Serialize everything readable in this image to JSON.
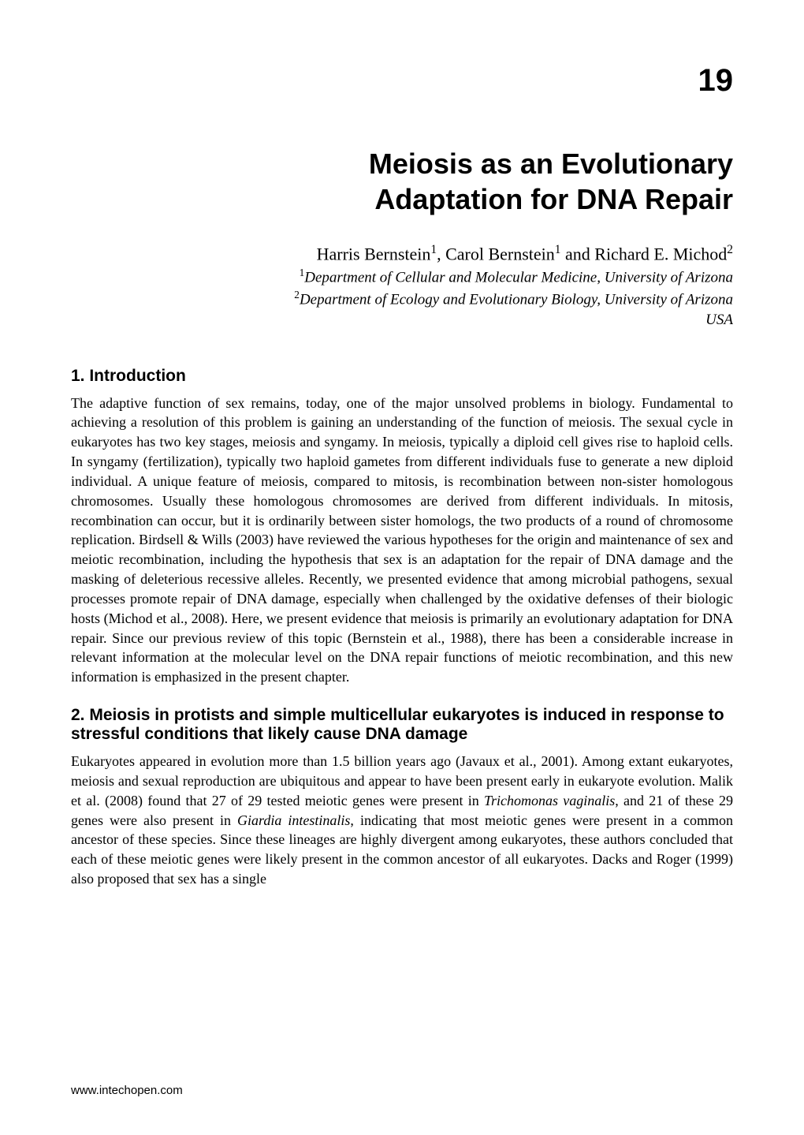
{
  "chapter_number": "19",
  "chapter_title_line1": "Meiosis as an Evolutionary",
  "chapter_title_line2": "Adaptation for DNA Repair",
  "authors_html": "Harris Bernstein<sup>1</sup>, Carol Bernstein<sup>1</sup> and Richard E. Michod<sup>2</sup>",
  "affil1_html": "<sup>1</sup>Department of Cellular and Molecular Medicine, University of Arizona",
  "affil2_html": "<sup>2</sup>Department of Ecology and Evolutionary Biology, University of Arizona",
  "country": "USA",
  "section1_heading": "1. Introduction",
  "section1_body": "The adaptive function of sex remains, today, one of the major unsolved problems in biology. Fundamental to achieving a resolution of this problem is gaining an understanding of the function of meiosis. The sexual cycle in eukaryotes has two key stages, meiosis and syngamy. In meiosis, typically a diploid cell gives rise to haploid cells. In syngamy (fertilization), typically two haploid gametes from different individuals fuse to generate a new diploid individual. A unique feature of meiosis, compared to mitosis, is recombination between non-sister homologous chromosomes. Usually these homologous chromosomes are derived from different individuals. In mitosis, recombination can occur, but it is ordinarily between sister homologs, the two products of a round of chromosome replication. Birdsell & Wills (2003) have reviewed the various hypotheses for the origin and maintenance of sex and meiotic recombination, including the hypothesis that sex is an adaptation for the repair of DNA damage and the masking of deleterious recessive alleles. Recently, we presented evidence that among microbial pathogens, sexual processes promote repair of DNA damage, especially when challenged by the oxidative defenses of their biologic hosts (Michod et al., 2008). Here, we present evidence that meiosis is primarily an evolutionary adaptation for DNA repair. Since our previous review of this topic (Bernstein et al., 1988), there has been a considerable increase in relevant information at the molecular level on the DNA repair functions of meiotic recombination, and this new information is emphasized in the present chapter.",
  "section2_heading": "2. Meiosis in protists and simple multicellular eukaryotes is induced in response to stressful conditions that likely cause DNA damage",
  "section2_body_html": "Eukaryotes appeared in evolution more than 1.5 billion years ago (Javaux et al., 2001). Among extant eukaryotes, meiosis and sexual reproduction are ubiquitous and appear to have been present early in eukaryote evolution. Malik et al. (2008) found that 27 of 29 tested meiotic genes were present in <i>Trichomonas vaginalis</i>, and 21 of these 29 genes were also present in <i>Giardia intestinalis</i>, indicating that most meiotic genes were present in a common ancestor of these species. Since these lineages are highly divergent among eukaryotes, these authors concluded that each of these meiotic genes were likely present in the common ancestor of all eukaryotes.  Dacks and Roger (1999) also proposed that sex has a single",
  "footer": "www.intechopen.com",
  "colors": {
    "text": "#000000",
    "background": "#ffffff"
  },
  "fonts": {
    "body": "Book Antiqua / Palatino serif",
    "headings": "Arial / Helvetica sans-serif"
  }
}
